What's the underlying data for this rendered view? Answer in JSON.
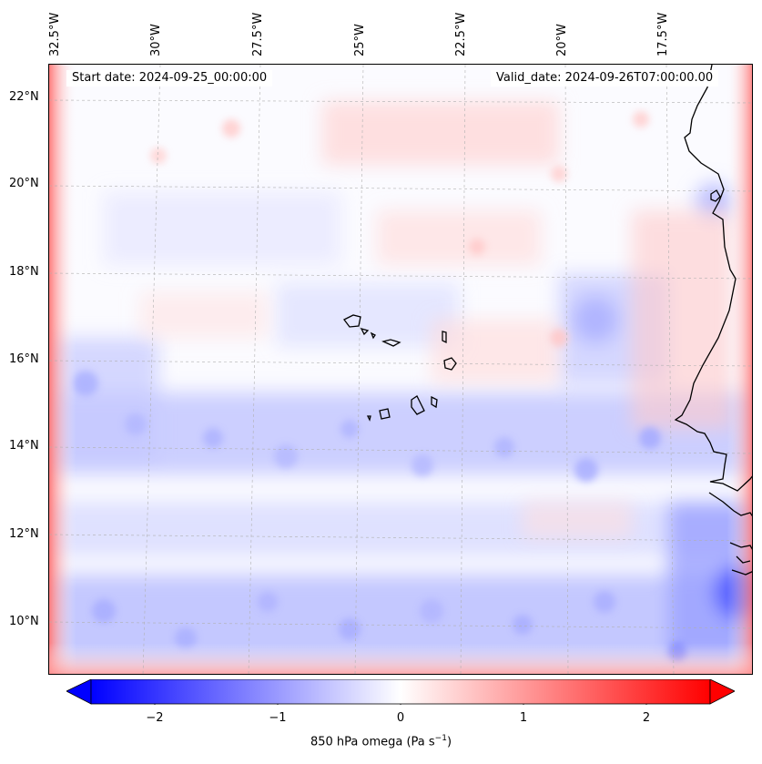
{
  "map": {
    "start_date": "Start date: 2024-09-25_00:00:00",
    "valid_date": "Valid_date: 2024-09-26T07:00:00.00",
    "lon_labels": [
      "32.5°W",
      "30°W",
      "27.5°W",
      "25°W",
      "22.5°W",
      "20°W",
      "17.5°W"
    ],
    "lat_labels": [
      "22°N",
      "20°N",
      "18°N",
      "16°N",
      "14°N",
      "12°N",
      "10°N"
    ]
  },
  "colorbar": {
    "label": "850 hPa omega (Pa s",
    "label_sup": "−1",
    "label_tail": ")",
    "ticks": [
      "−2",
      "−1",
      "0",
      "1",
      "2"
    ],
    "colors": {
      "negative": "#0000ff",
      "zero": "#ffffff",
      "positive": "#ff0000"
    }
  },
  "colors": {
    "coast": "#000000",
    "grid": "#b0b0b0"
  }
}
